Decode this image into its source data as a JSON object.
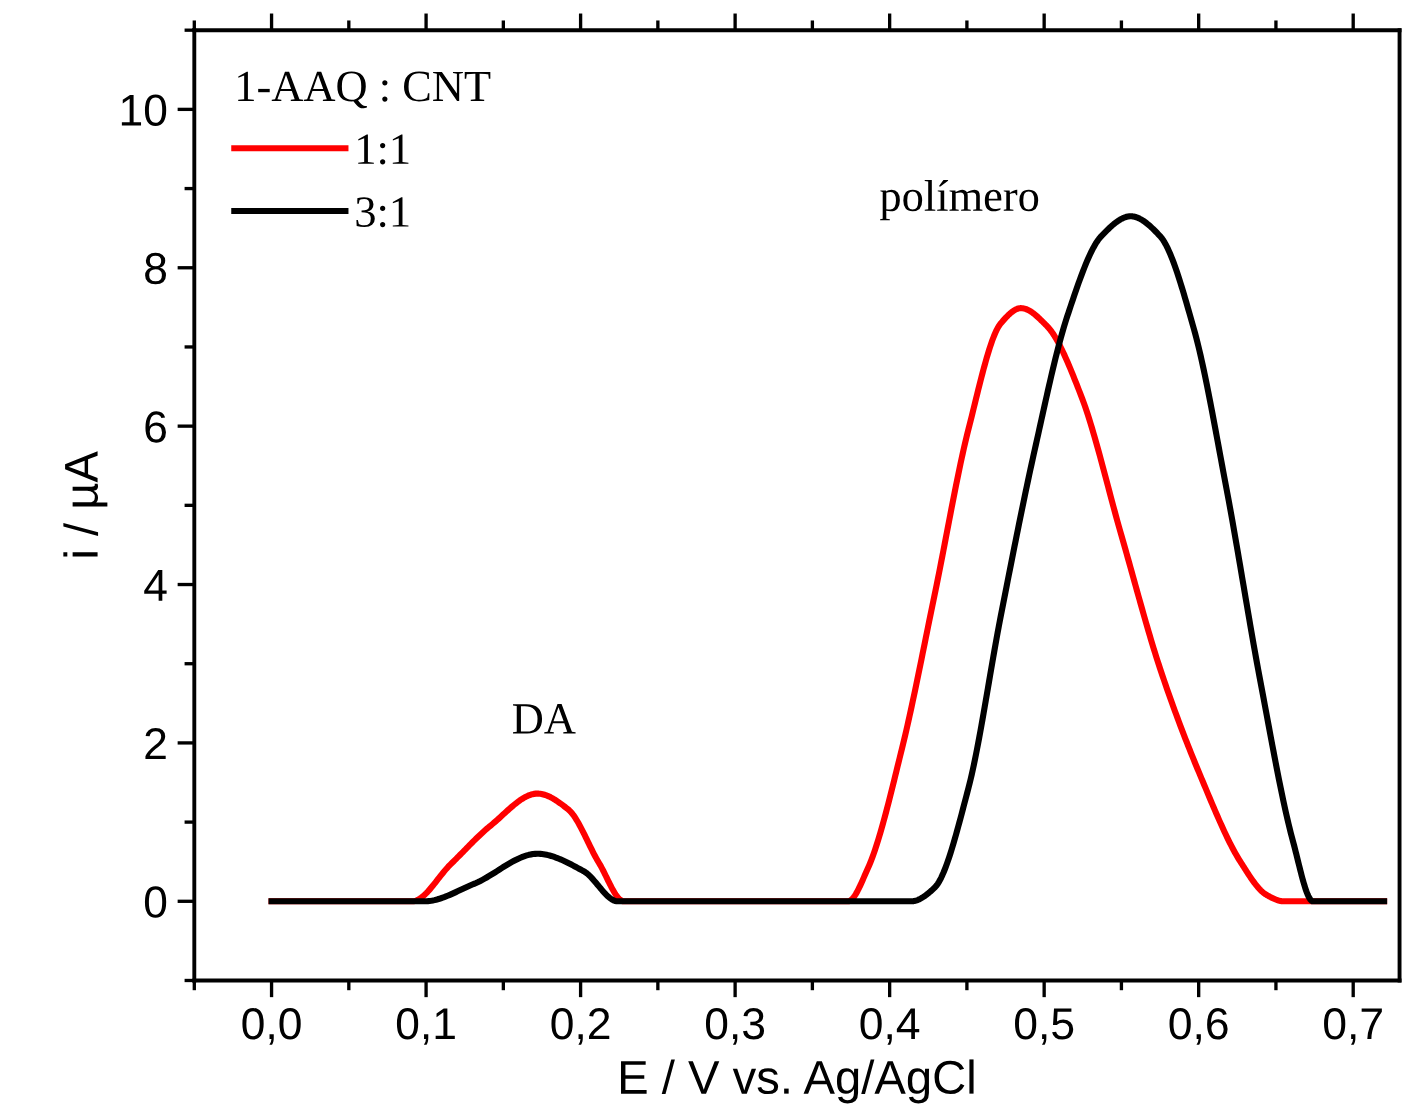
{
  "chart_data": {
    "type": "line",
    "xlabel": "E / V vs. Ag/AgCl",
    "ylabel": "i / µA",
    "legend_title": "1-AAQ : CNT",
    "legend": "top left",
    "grid": false,
    "marker": "none",
    "line_style": "solid",
    "xlim": [
      -0.05,
      0.73
    ],
    "ylim": [
      -1,
      11
    ],
    "xticks": [
      {
        "value": 0,
        "label": "0,0"
      },
      {
        "value": 0.1,
        "label": "0,1"
      },
      {
        "value": 0.2,
        "label": "0,2"
      },
      {
        "value": 0.3,
        "label": "0,3"
      },
      {
        "value": 0.4,
        "label": "0,4"
      },
      {
        "value": 0.5,
        "label": "0,5"
      },
      {
        "value": 0.6,
        "label": "0,6"
      },
      {
        "value": 0.7,
        "label": "0,7"
      }
    ],
    "yticks": [
      0,
      2,
      4,
      6,
      8,
      10
    ],
    "series": [
      {
        "name": "1:1",
        "color": "#ff0000",
        "x": [
          0,
          0.091,
          0.116,
          0.142,
          0.172,
          0.192,
          0.212,
          0.228,
          0.373,
          0.386,
          0.408,
          0.429,
          0.451,
          0.472,
          0.485,
          0.502,
          0.524,
          0.55,
          0.575,
          0.601,
          0.627,
          0.644,
          0.655,
          0.72
        ],
        "values": [
          0,
          0,
          0.47,
          0.96,
          1.36,
          1.16,
          0.48,
          0,
          0,
          0.42,
          1.93,
          3.86,
          5.96,
          7.3,
          7.49,
          7.26,
          6.38,
          4.62,
          2.94,
          1.59,
          0.5,
          0.08,
          0,
          0
        ]
      },
      {
        "name": "3:1",
        "color": "#000000",
        "x": [
          0,
          0.099,
          0.131,
          0.172,
          0.202,
          0.224,
          0.414,
          0.429,
          0.451,
          0.472,
          0.494,
          0.515,
          0.537,
          0.556,
          0.575,
          0.597,
          0.618,
          0.64,
          0.661,
          0.674,
          0.72
        ],
        "values": [
          0,
          0,
          0.22,
          0.6,
          0.38,
          0,
          0,
          0.17,
          1.43,
          3.61,
          5.71,
          7.39,
          8.4,
          8.65,
          8.4,
          7.22,
          5.21,
          2.77,
          0.76,
          0,
          0
        ]
      }
    ],
    "annotations": [
      "DA",
      "polímero"
    ]
  }
}
